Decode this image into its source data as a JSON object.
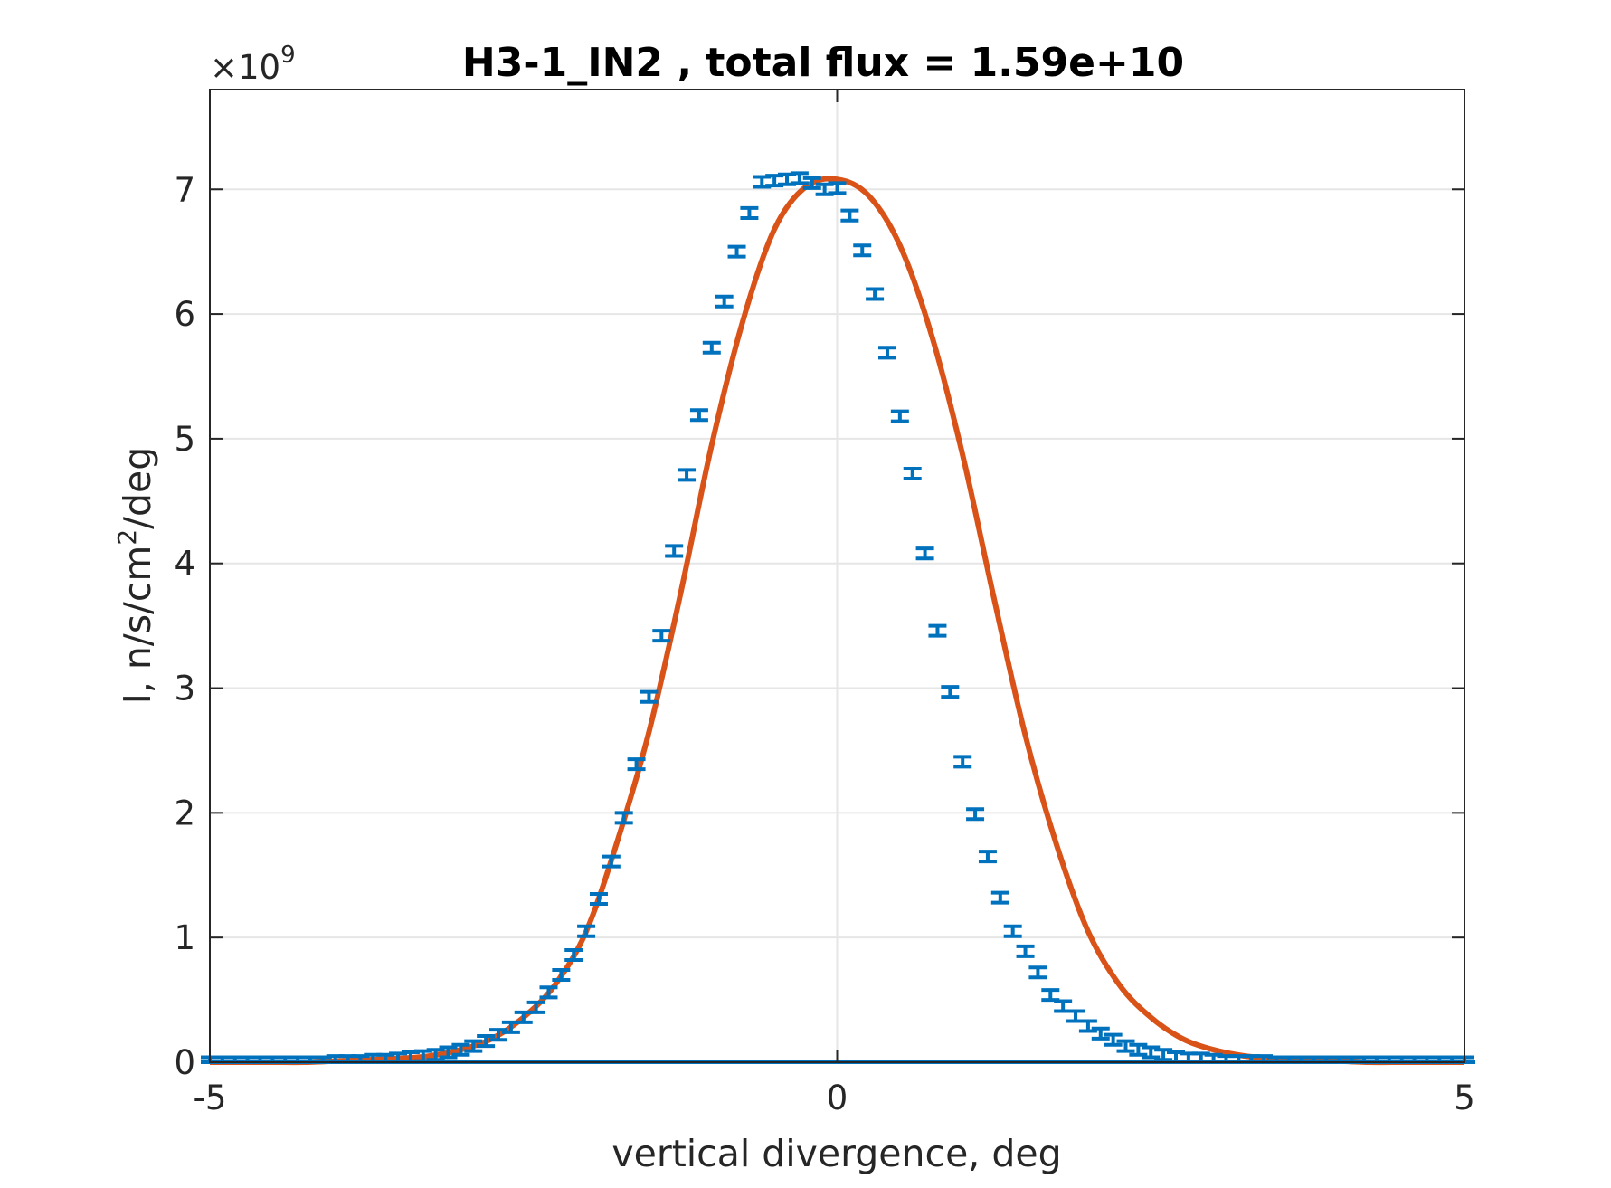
{
  "chart_data": {
    "type": "line",
    "title": "H3-1_IN2 , total flux =  1.59e+10",
    "xlabel": "vertical divergence, deg",
    "ylabel_main": "I, n/s/cm",
    "ylabel_sup": "2",
    "ylabel_end": "/deg",
    "y_exponent_prefix": "×10",
    "y_exponent_power": "9",
    "xlim": [
      -5,
      5
    ],
    "ylim": [
      0,
      7.8
    ],
    "y_scale_factor": 1000000000,
    "x_ticks": [
      -5,
      0,
      5
    ],
    "x_tick_labels": [
      "-5",
      "0",
      "5"
    ],
    "y_ticks": [
      0,
      1,
      2,
      3,
      4,
      5,
      6,
      7
    ],
    "y_tick_labels": [
      "0",
      "1",
      "2",
      "3",
      "4",
      "5",
      "6",
      "7"
    ],
    "grid": true,
    "colors": {
      "data": "#0072BD",
      "fit": "#D95319",
      "axis": "#262626",
      "grid": "#e6e6e6"
    },
    "series": [
      {
        "kind": "errorbar",
        "x": [
          -5.0,
          -4.9,
          -4.8,
          -4.7,
          -4.6,
          -4.5,
          -4.4,
          -4.3,
          -4.2,
          -4.1,
          -4.0,
          -3.9,
          -3.8,
          -3.7,
          -3.6,
          -3.5,
          -3.4,
          -3.3,
          -3.2,
          -3.1,
          -3.0,
          -2.9,
          -2.8,
          -2.7,
          -2.6,
          -2.5,
          -2.4,
          -2.3,
          -2.2,
          -2.1,
          -2.0,
          -1.9,
          -1.8,
          -1.7,
          -1.6,
          -1.5,
          -1.4,
          -1.3,
          -1.2,
          -1.1,
          -1.0,
          -0.9,
          -0.8,
          -0.7,
          -0.6,
          -0.5,
          -0.4,
          -0.3,
          -0.2,
          -0.1,
          0.0,
          0.1,
          0.2,
          0.3,
          0.4,
          0.5,
          0.6,
          0.7,
          0.8,
          0.9,
          1.0,
          1.1,
          1.2,
          1.3,
          1.4,
          1.5,
          1.6,
          1.7,
          1.8,
          1.9,
          2.0,
          2.1,
          2.2,
          2.3,
          2.4,
          2.5,
          2.6,
          2.7,
          2.8,
          2.9,
          3.0,
          3.1,
          3.2,
          3.3,
          3.4,
          3.5,
          3.6,
          3.7,
          3.8,
          3.9,
          4.0,
          4.1,
          4.2,
          4.3,
          4.4,
          4.5,
          4.6,
          4.7,
          4.8,
          4.9,
          5.0
        ],
        "y": [
          0.0,
          0.0,
          0.0,
          0.0,
          0.0,
          0.0,
          0.0,
          0.0,
          0.0,
          0.0,
          0.01,
          0.01,
          0.01,
          0.02,
          0.02,
          0.03,
          0.04,
          0.05,
          0.06,
          0.08,
          0.1,
          0.13,
          0.17,
          0.22,
          0.28,
          0.36,
          0.44,
          0.56,
          0.7,
          0.86,
          1.05,
          1.31,
          1.61,
          1.96,
          2.39,
          2.93,
          3.42,
          4.1,
          4.71,
          5.19,
          5.73,
          6.1,
          6.5,
          6.81,
          7.06,
          7.07,
          7.08,
          7.09,
          7.05,
          7.0,
          7.01,
          6.79,
          6.51,
          6.16,
          5.69,
          5.18,
          4.72,
          4.08,
          3.46,
          2.97,
          2.41,
          1.99,
          1.65,
          1.32,
          1.05,
          0.89,
          0.72,
          0.54,
          0.45,
          0.37,
          0.29,
          0.23,
          0.18,
          0.13,
          0.1,
          0.08,
          0.06,
          0.04,
          0.03,
          0.03,
          0.02,
          0.01,
          0.01,
          0.01,
          0.01,
          0.0,
          0.0,
          0.0,
          0.0,
          0.0,
          0.0,
          0.0,
          0.0,
          0.0,
          0.0,
          0.0,
          0.0,
          0.0,
          0.0,
          0.0,
          0.0
        ],
        "err": 0.04
      },
      {
        "kind": "line",
        "x": [
          -5.0,
          -4.75,
          -4.5,
          -4.25,
          -4.0,
          -3.75,
          -3.5,
          -3.25,
          -3.0,
          -2.75,
          -2.5,
          -2.25,
          -2.0,
          -1.75,
          -1.5,
          -1.25,
          -1.0,
          -0.75,
          -0.5,
          -0.25,
          0.0,
          0.25,
          0.5,
          0.75,
          1.0,
          1.25,
          1.5,
          1.75,
          2.0,
          2.25,
          2.5,
          2.75,
          3.0,
          3.25,
          3.5,
          3.75,
          4.0,
          4.25,
          4.5,
          4.75,
          5.0
        ],
        "y": [
          0.0,
          0.0,
          0.0,
          0.0,
          0.01,
          0.02,
          0.03,
          0.05,
          0.1,
          0.19,
          0.36,
          0.62,
          1.05,
          1.78,
          2.65,
          3.75,
          4.95,
          5.95,
          6.68,
          7.02,
          7.08,
          6.95,
          6.55,
          5.84,
          4.87,
          3.72,
          2.62,
          1.74,
          1.05,
          0.62,
          0.36,
          0.19,
          0.1,
          0.05,
          0.03,
          0.02,
          0.01,
          0.0,
          0.0,
          0.0,
          0.0
        ]
      }
    ]
  }
}
